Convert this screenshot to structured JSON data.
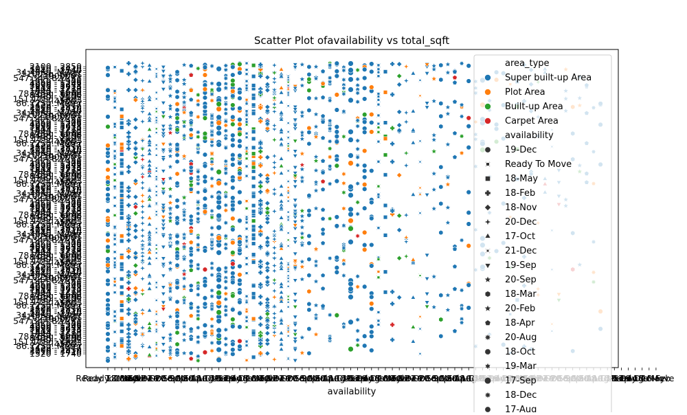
{
  "chart_data": {
    "type": "scatter",
    "title": "Scatter Plot ofavailability vs total_sqft",
    "xlabel": "availability",
    "ylabel": "",
    "x_first_tick": "Ready To Move",
    "y_visible_tick_labels": [
      "2100 - 2850",
      "3010 - 3410",
      "1520 - 1740",
      "34.46Sq. Meter",
      "1100Sq. Yards",
      "100000 - ",
      "547.34 - 827.31",
      "1425 - 1450",
      "1250 - 1305",
      "4000 - 5249",
      "3090 - 5633",
      "1319 - 1710",
      "1804 - 2273",
      "1540 - 1680",
      "78.75Sq. Yards",
      "8400 - 9000",
      "1160 - 1195",
      "151.11Sq. Yards",
      "4500 - ",
      "86.72Sq. Meter",
      "1422 - 1477"
    ],
    "hue_title": "area_type",
    "hue_series": [
      {
        "name": "Super built-up  Area",
        "color": "#1f77b4"
      },
      {
        "name": "Plot  Area",
        "color": "#ff7f0e"
      },
      {
        "name": "Built-up  Area",
        "color": "#2ca02c"
      },
      {
        "name": "Carpet  Area",
        "color": "#d62728"
      }
    ],
    "style_title": "availability",
    "style_series": [
      {
        "name": "19-Dec",
        "marker": "circle"
      },
      {
        "name": "Ready To Move",
        "marker": "x"
      },
      {
        "name": "18-May",
        "marker": "square"
      },
      {
        "name": "18-Feb",
        "marker": "plus"
      },
      {
        "name": "18-Nov",
        "marker": "diamond"
      },
      {
        "name": "20-Dec",
        "marker": "star4"
      },
      {
        "name": "17-Oct",
        "marker": "triangle-up"
      },
      {
        "name": "21-Dec",
        "marker": "x-thin"
      },
      {
        "name": "19-Sep",
        "marker": "triangle-down"
      },
      {
        "name": "20-Sep",
        "marker": "star"
      },
      {
        "name": "18-Mar",
        "marker": "hexagon"
      },
      {
        "name": "20-Feb",
        "marker": "star5"
      },
      {
        "name": "18-Apr",
        "marker": "pentagon"
      },
      {
        "name": "20-Aug",
        "marker": "star8"
      },
      {
        "name": "18-Oct",
        "marker": "octagon"
      },
      {
        "name": "19-Mar",
        "marker": "star6"
      },
      {
        "name": "17-Sep",
        "marker": "circle-large"
      },
      {
        "name": "18-Dec",
        "marker": "star8"
      },
      {
        "name": "17-Aug",
        "marker": "circle"
      }
    ],
    "legend_placement": "upper right (overflowing plot)",
    "grid": false
  }
}
